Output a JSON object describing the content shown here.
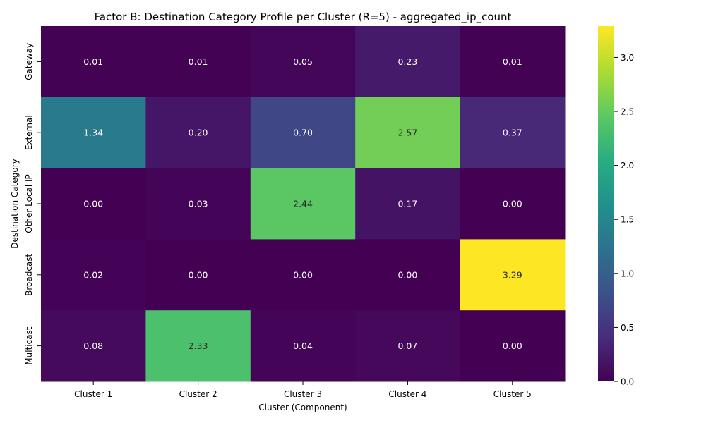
{
  "chart_data": {
    "type": "heatmap",
    "title": "Factor B: Destination Category Profile per Cluster (R=5) - aggregated_ip_count",
    "xlabel": "Cluster (Component)",
    "ylabel": "Destination Category",
    "x_categories": [
      "Cluster 1",
      "Cluster 2",
      "Cluster 3",
      "Cluster 4",
      "Cluster 5"
    ],
    "y_categories": [
      "Gateway",
      "External",
      "Other Local IP",
      "Broadcast",
      "Multicast"
    ],
    "values": [
      [
        0.01,
        0.01,
        0.05,
        0.23,
        0.01
      ],
      [
        1.34,
        0.2,
        0.7,
        2.57,
        0.37
      ],
      [
        0.0,
        0.03,
        2.44,
        0.17,
        0.0
      ],
      [
        0.02,
        0.0,
        0.0,
        0.0,
        3.29
      ],
      [
        0.08,
        2.33,
        0.04,
        0.07,
        0.0
      ]
    ],
    "value_range": [
      0,
      3.29
    ],
    "colormap": "viridis",
    "colorbar_ticks": [
      0.0,
      0.5,
      1.0,
      1.5,
      2.0,
      2.5,
      3.0
    ],
    "colorbar_tick_labels": [
      "0.0",
      "0.5",
      "1.0",
      "1.5",
      "2.0",
      "2.5",
      "3.0"
    ],
    "value_format_decimals": 2,
    "grid": false,
    "colorbar_placement": "right"
  }
}
